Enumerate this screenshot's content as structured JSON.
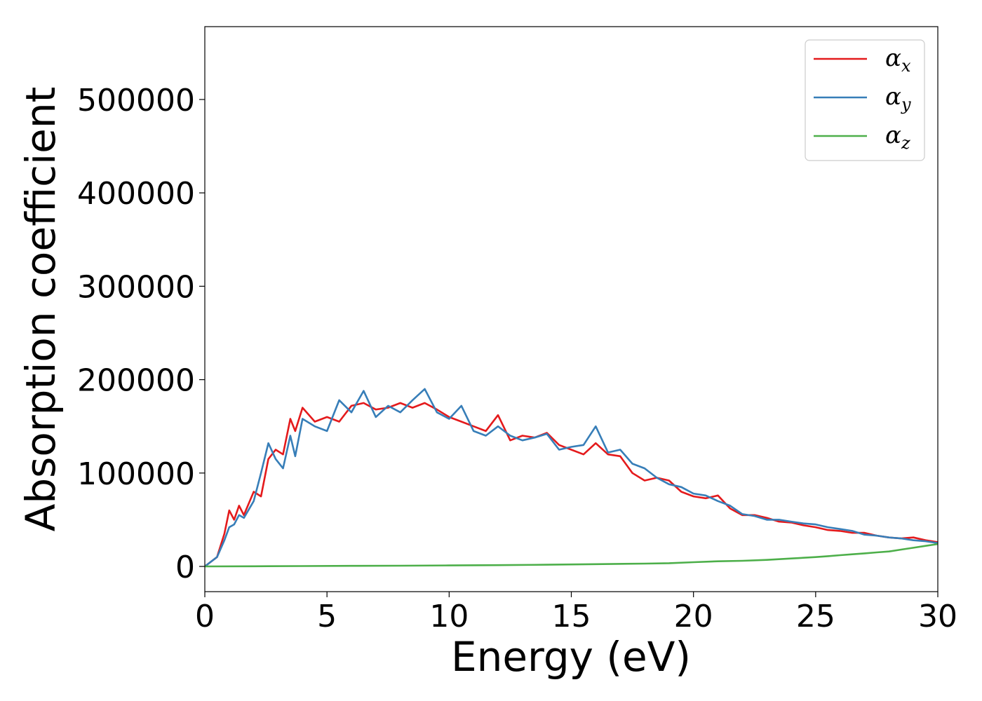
{
  "chart_data": {
    "type": "line",
    "xlabel": "Energy (eV)",
    "ylabel": "Absorption coefficient",
    "xlim": [
      0,
      30
    ],
    "ylim": [
      -27000,
      578000
    ],
    "xticks": [
      0,
      5,
      10,
      15,
      20,
      25,
      30
    ],
    "xtick_labels": [
      "0",
      "5",
      "10",
      "15",
      "20",
      "25",
      "30"
    ],
    "yticks": [
      0,
      100000,
      200000,
      300000,
      400000,
      500000
    ],
    "ytick_labels": [
      "0",
      "100000",
      "200000",
      "300000",
      "400000",
      "500000"
    ],
    "grid": false,
    "legend": {
      "placement": "top-right"
    },
    "series": [
      {
        "name": "α",
        "subscript": "x",
        "color": "#e41a1c",
        "x": [
          0,
          0.5,
          0.8,
          1.0,
          1.2,
          1.4,
          1.6,
          2.0,
          2.3,
          2.6,
          2.9,
          3.2,
          3.5,
          3.7,
          4.0,
          4.5,
          5.0,
          5.5,
          6.0,
          6.5,
          7.0,
          7.5,
          8.0,
          8.5,
          9.0,
          9.5,
          10.0,
          10.5,
          11.0,
          11.5,
          12.0,
          12.5,
          13.0,
          13.5,
          14.0,
          14.5,
          15.0,
          15.5,
          16.0,
          16.5,
          17.0,
          17.5,
          18.0,
          18.5,
          19.0,
          19.5,
          20.0,
          20.5,
          21.0,
          21.5,
          22.0,
          22.5,
          23.0,
          23.5,
          24.0,
          24.5,
          25.0,
          25.5,
          26.0,
          26.5,
          27.0,
          27.5,
          28.0,
          28.5,
          29.0,
          29.5,
          30.0
        ],
        "y": [
          0,
          10000,
          35000,
          60000,
          50000,
          65000,
          55000,
          80000,
          75000,
          115000,
          125000,
          120000,
          158000,
          145000,
          170000,
          155000,
          160000,
          155000,
          172000,
          175000,
          168000,
          170000,
          175000,
          170000,
          175000,
          168000,
          160000,
          155000,
          150000,
          145000,
          162000,
          135000,
          140000,
          138000,
          143000,
          130000,
          125000,
          120000,
          132000,
          120000,
          118000,
          100000,
          92000,
          95000,
          92000,
          80000,
          75000,
          73000,
          76000,
          62000,
          55000,
          55000,
          52000,
          48000,
          47000,
          44000,
          42000,
          39000,
          38000,
          36000,
          36000,
          33000,
          31000,
          30000,
          31000,
          28000,
          26000
        ]
      },
      {
        "name": "α",
        "subscript": "y",
        "color": "#377eb8",
        "x": [
          0,
          0.5,
          0.8,
          1.0,
          1.2,
          1.4,
          1.6,
          2.0,
          2.3,
          2.6,
          2.9,
          3.2,
          3.5,
          3.7,
          4.0,
          4.5,
          5.0,
          5.5,
          6.0,
          6.5,
          7.0,
          7.5,
          8.0,
          8.5,
          9.0,
          9.5,
          10.0,
          10.5,
          11.0,
          11.5,
          12.0,
          12.5,
          13.0,
          13.5,
          14.0,
          14.5,
          15.0,
          15.5,
          16.0,
          16.5,
          17.0,
          17.5,
          18.0,
          18.5,
          19.0,
          19.5,
          20.0,
          20.5,
          21.0,
          21.5,
          22.0,
          22.5,
          23.0,
          23.5,
          24.0,
          24.5,
          25.0,
          25.5,
          26.0,
          26.5,
          27.0,
          27.5,
          28.0,
          28.5,
          29.0,
          29.5,
          30.0
        ],
        "y": [
          0,
          10000,
          28000,
          42000,
          45000,
          55000,
          52000,
          70000,
          100000,
          132000,
          115000,
          105000,
          140000,
          118000,
          158000,
          150000,
          145000,
          178000,
          165000,
          188000,
          160000,
          172000,
          165000,
          178000,
          190000,
          165000,
          158000,
          172000,
          145000,
          140000,
          150000,
          140000,
          135000,
          138000,
          142000,
          125000,
          128000,
          130000,
          150000,
          122000,
          125000,
          110000,
          105000,
          95000,
          88000,
          85000,
          78000,
          76000,
          70000,
          65000,
          56000,
          54000,
          50000,
          50000,
          48000,
          46000,
          45000,
          42000,
          40000,
          38000,
          34000,
          33000,
          31000,
          30000,
          28000,
          27000,
          25000
        ]
      },
      {
        "name": "α",
        "subscript": "z",
        "color": "#4daf4a",
        "x": [
          0,
          2,
          4,
          6,
          8,
          10,
          12,
          14,
          16,
          18,
          19,
          20,
          21,
          22,
          23,
          24,
          25,
          25.5,
          26,
          26.5,
          27,
          27.5,
          28,
          28.5,
          29,
          29.5,
          30
        ],
        "y": [
          0,
          200,
          400,
          600,
          800,
          1100,
          1400,
          1800,
          2400,
          3000,
          3500,
          4500,
          5500,
          6000,
          7000,
          8500,
          10000,
          11000,
          12000,
          13000,
          14000,
          15000,
          16000,
          18000,
          20000,
          22000,
          24000
        ]
      }
    ]
  }
}
